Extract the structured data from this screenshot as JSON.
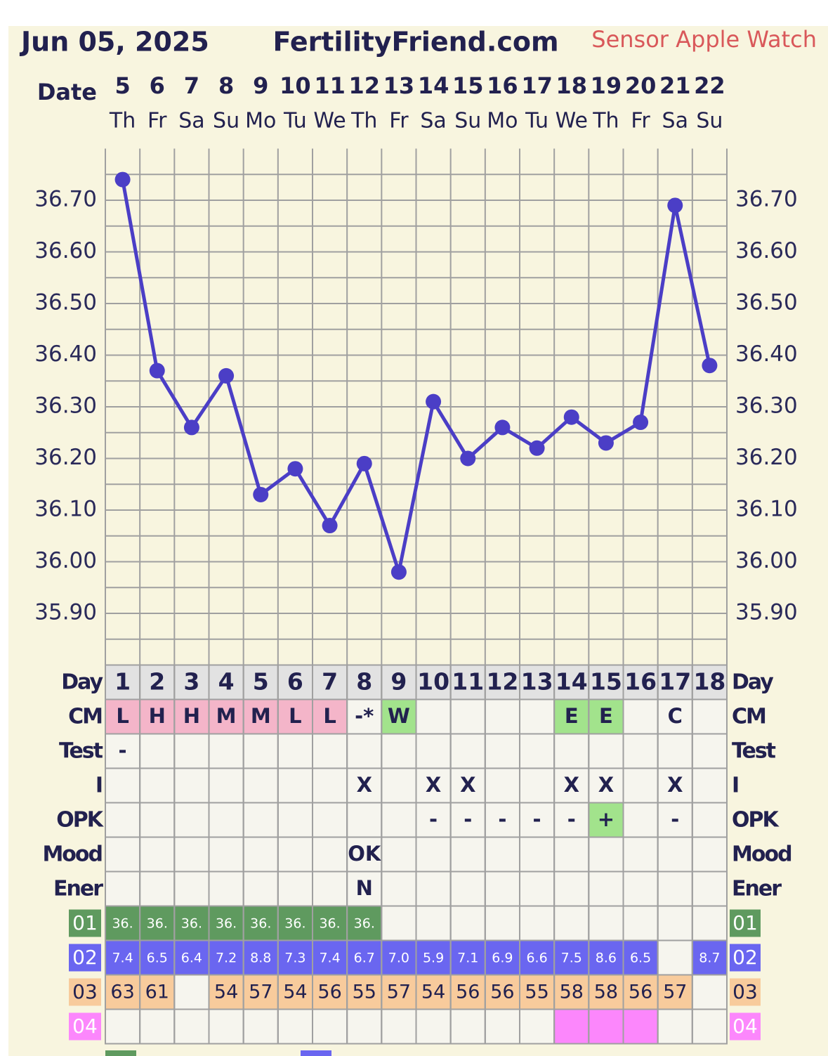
{
  "header": {
    "date": "Jun 05, 2025",
    "site": "FertilityFriend.com",
    "sensor": "Sensor Apple Watch"
  },
  "chart_data": {
    "type": "line",
    "x_label": "Date",
    "categories": [
      "5",
      "6",
      "7",
      "8",
      "9",
      "10",
      "11",
      "12",
      "13",
      "14",
      "15",
      "16",
      "17",
      "18",
      "19",
      "20",
      "21",
      "22"
    ],
    "weekdays": [
      "Th",
      "Fr",
      "Sa",
      "Su",
      "Mo",
      "Tu",
      "We",
      "Th",
      "Fr",
      "Sa",
      "Su",
      "Mo",
      "Tu",
      "We",
      "Th",
      "Fr",
      "Sa",
      "Su"
    ],
    "values": [
      36.74,
      36.37,
      36.26,
      36.36,
      36.13,
      36.18,
      36.07,
      36.19,
      35.98,
      36.31,
      36.2,
      36.26,
      36.22,
      36.28,
      36.23,
      36.27,
      36.69,
      36.38
    ],
    "color": "#4b3ec6",
    "ylim": [
      35.8,
      36.8
    ],
    "yticks": [
      {
        "value": 35.9,
        "label": "35.90"
      },
      {
        "value": 36.0,
        "label": "36.00"
      },
      {
        "value": 36.1,
        "label": "36.10"
      },
      {
        "value": 36.2,
        "label": "36.20"
      },
      {
        "value": 36.3,
        "label": "36.30"
      },
      {
        "value": 36.4,
        "label": "36.40"
      },
      {
        "value": 36.5,
        "label": "36.50"
      },
      {
        "value": 36.6,
        "label": "36.60"
      },
      {
        "value": 36.7,
        "label": "36.70"
      }
    ],
    "ygrid": [
      35.85,
      35.9,
      35.95,
      36.0,
      36.05,
      36.1,
      36.15,
      36.2,
      36.25,
      36.3,
      36.35,
      36.4,
      36.45,
      36.5,
      36.55,
      36.6,
      36.65,
      36.7,
      36.75
    ],
    "grid": true
  },
  "table": {
    "rows": [
      {
        "label": "Day",
        "cells": [
          "1",
          "2",
          "3",
          "4",
          "5",
          "6",
          "7",
          "8",
          "9",
          "10",
          "11",
          "12",
          "13",
          "14",
          "15",
          "16",
          "17",
          "18"
        ],
        "row_color": "#e2e2e2"
      },
      {
        "label": "CM",
        "cells": [
          "L",
          "H",
          "H",
          "M",
          "M",
          "L",
          "L",
          "-*",
          "W",
          null,
          null,
          null,
          null,
          "E",
          "E",
          null,
          "C",
          null
        ],
        "colors": [
          "#f4b5c9",
          "#f4b5c9",
          "#f4b5c9",
          "#f4b5c9",
          "#f4b5c9",
          "#f4b5c9",
          "#f4b5c9",
          null,
          "#a2e38c",
          null,
          null,
          null,
          null,
          "#a2e38c",
          "#a2e38c",
          null,
          null,
          null
        ]
      },
      {
        "label": "Test",
        "cells": [
          "-",
          null,
          null,
          null,
          null,
          null,
          null,
          null,
          null,
          null,
          null,
          null,
          null,
          null,
          null,
          null,
          null,
          null
        ]
      },
      {
        "label": "I",
        "cells": [
          null,
          null,
          null,
          null,
          null,
          null,
          null,
          "X",
          null,
          "X",
          "X",
          null,
          null,
          "X",
          "X",
          null,
          "X",
          null
        ]
      },
      {
        "label": "OPK",
        "cells": [
          null,
          null,
          null,
          null,
          null,
          null,
          null,
          null,
          null,
          "-",
          "-",
          "-",
          "-",
          "-",
          "+",
          null,
          "-",
          null
        ],
        "colors": [
          null,
          null,
          null,
          null,
          null,
          null,
          null,
          null,
          null,
          null,
          null,
          null,
          null,
          null,
          "#a2e38c",
          null,
          null,
          null
        ]
      },
      {
        "label": "Mood",
        "cells": [
          null,
          null,
          null,
          null,
          null,
          null,
          null,
          "OK",
          null,
          null,
          null,
          null,
          null,
          null,
          null,
          null,
          null,
          null
        ]
      },
      {
        "label": "Ener",
        "cells": [
          null,
          null,
          null,
          null,
          null,
          null,
          null,
          "N",
          null,
          null,
          null,
          null,
          null,
          null,
          null,
          null,
          null,
          null
        ]
      },
      {
        "label": "01",
        "label_color": "#5f9a5f",
        "cells": [
          "36.",
          "36.",
          "36.",
          "36.",
          "36.",
          "36.",
          "36.",
          "36.",
          null,
          null,
          null,
          null,
          null,
          null,
          null,
          null,
          null,
          null
        ],
        "colors": [
          "#5f9a5f",
          "#5f9a5f",
          "#5f9a5f",
          "#5f9a5f",
          "#5f9a5f",
          "#5f9a5f",
          "#5f9a5f",
          "#5f9a5f",
          null,
          null,
          null,
          null,
          null,
          null,
          null,
          null,
          null,
          null
        ]
      },
      {
        "label": "02",
        "label_color": "#6a66f0",
        "cells": [
          "7.4",
          "6.5",
          "6.4",
          "7.2",
          "8.8",
          "7.3",
          "7.4",
          "6.7",
          "7.0",
          "5.9",
          "7.1",
          "6.9",
          "6.6",
          "7.5",
          "8.6",
          "6.5",
          null,
          "8.7"
        ],
        "colors": [
          "#6a66f0",
          "#6a66f0",
          "#6a66f0",
          "#6a66f0",
          "#6a66f0",
          "#6a66f0",
          "#6a66f0",
          "#6a66f0",
          "#6a66f0",
          "#6a66f0",
          "#6a66f0",
          "#6a66f0",
          "#6a66f0",
          "#6a66f0",
          "#6a66f0",
          "#6a66f0",
          null,
          "#6a66f0"
        ]
      },
      {
        "label": "03",
        "label_color": "#f8cb9c",
        "cells": [
          "63",
          "61",
          null,
          "54",
          "57",
          "54",
          "56",
          "55",
          "57",
          "54",
          "56",
          "56",
          "55",
          "58",
          "58",
          "56",
          "57",
          null
        ],
        "colors": [
          "#f8cb9c",
          "#f8cb9c",
          null,
          "#f8cb9c",
          "#f8cb9c",
          "#f8cb9c",
          "#f8cb9c",
          "#f8cb9c",
          "#f8cb9c",
          "#f8cb9c",
          "#f8cb9c",
          "#f8cb9c",
          "#f8cb9c",
          "#f8cb9c",
          "#f8cb9c",
          "#f8cb9c",
          "#f8cb9c",
          null
        ]
      },
      {
        "label": "04",
        "label_color": "#fc87fc",
        "cells": [
          null,
          null,
          null,
          null,
          null,
          null,
          null,
          null,
          null,
          null,
          null,
          null,
          null,
          null,
          null,
          null,
          null,
          null
        ],
        "colors": [
          null,
          null,
          null,
          null,
          null,
          null,
          null,
          null,
          null,
          null,
          null,
          null,
          null,
          "#fc87fc",
          "#fc87fc",
          "#fc87fc",
          null,
          null
        ]
      }
    ]
  }
}
